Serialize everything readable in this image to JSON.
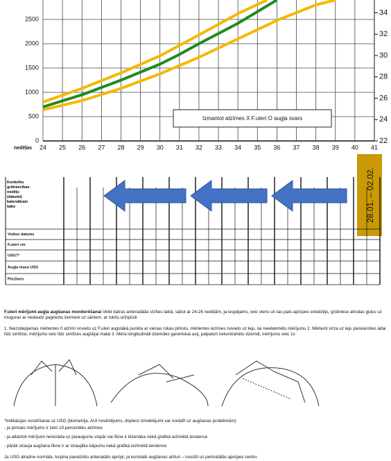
{
  "chart_data": {
    "type": "line",
    "xlabel": "nedēļas",
    "annotation": "Izmantot atzīmes X F.uteri O augļa svars",
    "xlim": [
      24,
      41
    ],
    "xticks": [
      24,
      25,
      26,
      27,
      28,
      29,
      30,
      31,
      32,
      33,
      34,
      35,
      36,
      37,
      38,
      39,
      40,
      41
    ],
    "ylim": [
      0,
      2900
    ],
    "yticks": [
      0,
      500,
      1000,
      1500,
      2000,
      2500
    ],
    "y2lim": [
      22,
      35.2
    ],
    "y2ticks": [
      22,
      24,
      26,
      28,
      30,
      32,
      34
    ],
    "grid": true,
    "series": [
      {
        "color": "#f5b800",
        "x": [
          24,
          26,
          28,
          30,
          32,
          34,
          35.5
        ],
        "values": [
          800,
          1080,
          1400,
          1750,
          2180,
          2620,
          2900
        ]
      },
      {
        "color": "#1f8a1f",
        "x": [
          24,
          26,
          28,
          30,
          31,
          32,
          34,
          36
        ],
        "values": [
          700,
          950,
          1250,
          1580,
          1780,
          2000,
          2420,
          2900
        ]
      },
      {
        "color": "#f5b800",
        "x": [
          24,
          26,
          28,
          30,
          32,
          34,
          36,
          38,
          39
        ],
        "values": [
          640,
          830,
          1080,
          1380,
          1720,
          2100,
          2480,
          2800,
          2900
        ]
      }
    ]
  },
  "table": {
    "period": "28.01. – 02.02.",
    "rows": [
      "Konkrētu grūtniecības nedēļu (datumi) kalendārais laiks",
      "Vizītes datums",
      "F.uteri cm",
      "USG?*",
      "Augļa masa USG",
      "Piezīmes"
    ]
  },
  "text": {
    "intro_title": "F.uteri mērījumi augļa augšanas monitorēšanai",
    "intro": "Veikt katras antenatālās vizītes laikā, sākot ar 24-26 nedēļām, ja iespējams, veic viens un tas pats aprūpes sniedzējs, grūtniece atrodas guļus uz muguras ar nedaudz pagrieztu ķermeni uz sāniem, ar tukšu urīnpūsli",
    "steps": "1. Neizstiepjamas mērlentes 0 atzīmi novieto uz F.uteri augstākā punkta ar vienas rokas pirkstu, mērlentes iezīmes novieto uz leju, lai neietekmētu mērījumu 2. Mērlenti virza uz leju pieskaroties ādai līdz simfizei, mērījumu veic līdz simfizes augšējai malai 3. Mēra longitudināli dzemdes gareniskai asij, palpatori nekontrahētu dzemdi, mērījumu veic 1x",
    "indications": "*Indikācijas nosūtīšanai uz USG (biometrija, AUI novērtējums, doplero izmeklējumi var norādīt uz augšanas problēmām):",
    "bullets": [
      "- ja pirmais mērījums ir zem 10.percentiles atzīmes",
      "- ja atkārtoti mērījumi nenorāda uz pieaugumu vispār vai līkne ir lēzenāka nekā grafikā iezīmētā tendence",
      "- pārāk strauja augšana līkne ir ar straujāku kāpumu nekā grafikā iezīmētā tendence"
    ],
    "footer": "Ja USG atradne normāla, turpina paredzēto antenatālo aprūpi, ja konstatē augšanas aizturi – nosūtīt uz perinatālās aprūpes centru"
  }
}
